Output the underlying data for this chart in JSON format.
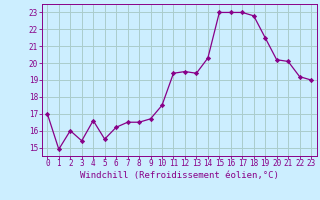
{
  "x": [
    0,
    1,
    2,
    3,
    4,
    5,
    6,
    7,
    8,
    9,
    10,
    11,
    12,
    13,
    14,
    15,
    16,
    17,
    18,
    19,
    20,
    21,
    22,
    23
  ],
  "y": [
    17.0,
    14.9,
    16.0,
    15.4,
    16.6,
    15.5,
    16.2,
    16.5,
    16.5,
    16.7,
    17.5,
    19.4,
    19.5,
    19.4,
    20.3,
    23.0,
    23.0,
    23.0,
    22.8,
    21.5,
    20.2,
    20.1,
    19.2,
    19.0
  ],
  "line_color": "#880088",
  "marker": "D",
  "marker_size": 2.2,
  "bg_color": "#cceeff",
  "grid_color": "#aacccc",
  "xlabel": "Windchill (Refroidissement éolien,°C)",
  "ylabel": "",
  "title": "",
  "xlim": [
    -0.5,
    23.5
  ],
  "ylim": [
    14.5,
    23.5
  ],
  "yticks": [
    15,
    16,
    17,
    18,
    19,
    20,
    21,
    22,
    23
  ],
  "xticks": [
    0,
    1,
    2,
    3,
    4,
    5,
    6,
    7,
    8,
    9,
    10,
    11,
    12,
    13,
    14,
    15,
    16,
    17,
    18,
    19,
    20,
    21,
    22,
    23
  ],
  "xtick_labels": [
    "0",
    "1",
    "2",
    "3",
    "4",
    "5",
    "6",
    "7",
    "8",
    "9",
    "10",
    "11",
    "12",
    "13",
    "14",
    "15",
    "16",
    "17",
    "18",
    "19",
    "20",
    "21",
    "22",
    "23"
  ],
  "tick_fontsize": 5.5,
  "ylabel_fontsize": 6.0,
  "xlabel_fontsize": 6.5
}
